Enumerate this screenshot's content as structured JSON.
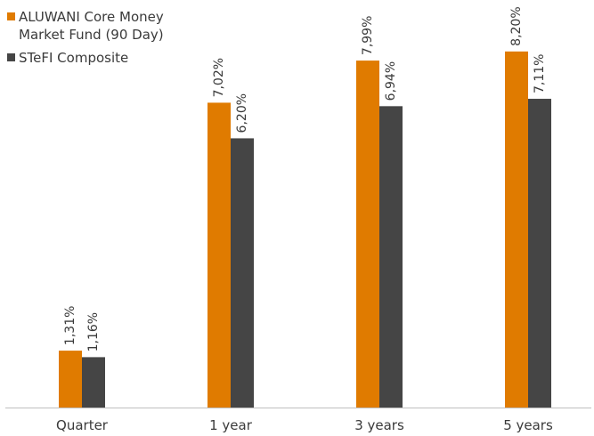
{
  "chart_data": {
    "type": "bar",
    "title": "",
    "xlabel": "",
    "ylabel": "",
    "categories": [
      "Quarter",
      "1 year",
      "3 years",
      "5 years"
    ],
    "series": [
      {
        "name": "ALUWANI Core Money Market Fund (90 Day)",
        "legend_lines": [
          "ALUWANI Core Money",
          "Market Fund (90 Day)"
        ],
        "color": "#E07B00",
        "values": [
          1.31,
          7.02,
          7.99,
          8.2
        ],
        "labels": [
          "1,31%",
          "7,02%",
          "7,99%",
          "8,20%"
        ]
      },
      {
        "name": "STeFI Composite",
        "legend_lines": [
          "STeFI Composite"
        ],
        "color": "#454545",
        "values": [
          1.16,
          6.2,
          6.94,
          7.11
        ],
        "labels": [
          "1,16%",
          "6,20%",
          "6,94%",
          "7,11%"
        ]
      }
    ],
    "ylim": [
      0,
      10
    ],
    "grid": false,
    "legend_position": "top-left",
    "axis_color": "#BFBFBF",
    "text_color": "#3A3A3A"
  }
}
